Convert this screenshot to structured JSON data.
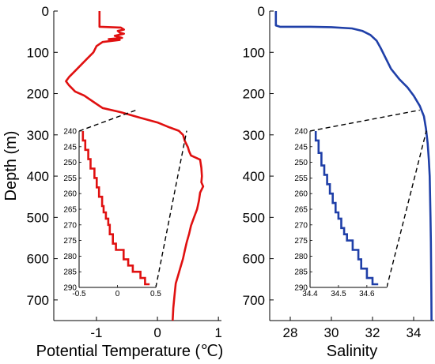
{
  "chart_data": [
    {
      "type": "line",
      "xlabel": "Potential Temperature (℃)",
      "ylabel": "Depth (m)",
      "xlim": [
        -1.7,
        1.05
      ],
      "ylim": [
        750,
        0
      ],
      "xticks": [
        -1,
        0,
        1
      ],
      "yticks": [
        0,
        100,
        200,
        300,
        400,
        500,
        600,
        700
      ],
      "grid": false,
      "color": "#e01010",
      "series": [
        {
          "x": [
            -0.95,
            -0.95,
            -0.6,
            -0.55,
            -0.65,
            -0.62,
            -0.55,
            -0.7,
            -0.58,
            -0.8,
            -0.62,
            -0.9,
            -1.0,
            -1.05,
            -1.15,
            -1.25,
            -1.35,
            -1.45,
            -1.5,
            -1.45,
            -1.35,
            -1.2,
            -1.05,
            -0.9,
            -0.6,
            -0.3,
            0.0,
            0.2,
            0.35,
            0.42,
            0.45,
            0.5,
            0.52,
            0.55,
            0.7,
            0.72,
            0.73,
            0.72,
            0.75,
            0.7,
            0.68,
            0.65,
            0.6,
            0.55,
            0.52,
            0.48,
            0.45,
            0.42,
            0.38,
            0.34,
            0.3,
            0.28,
            0.26,
            0.25
          ],
          "y": [
            0,
            38,
            40,
            45,
            48,
            52,
            55,
            60,
            65,
            68,
            70,
            75,
            85,
            100,
            115,
            130,
            145,
            160,
            170,
            180,
            195,
            205,
            220,
            235,
            245,
            258,
            270,
            282,
            290,
            300,
            315,
            330,
            340,
            350,
            360,
            380,
            400,
            415,
            425,
            440,
            460,
            480,
            500,
            520,
            540,
            560,
            580,
            600,
            620,
            640,
            660,
            690,
            720,
            750
          ]
        }
      ],
      "inset": {
        "xlim": [
          -0.5,
          0.5
        ],
        "ylim": [
          290,
          240
        ],
        "xticks": [
          -0.5,
          0,
          0.5
        ],
        "xtick_labels": [
          "-0.5",
          "0",
          "0.5"
        ],
        "yticks": [
          240,
          245,
          250,
          255,
          260,
          265,
          270,
          275,
          280,
          285,
          290
        ],
        "x": [
          -0.45,
          -0.45,
          -0.42,
          -0.42,
          -0.38,
          -0.38,
          -0.35,
          -0.35,
          -0.3,
          -0.3,
          -0.27,
          -0.27,
          -0.24,
          -0.24,
          -0.2,
          -0.2,
          -0.18,
          -0.18,
          -0.15,
          -0.15,
          -0.12,
          -0.12,
          -0.1,
          -0.1,
          -0.06,
          -0.06,
          -0.02,
          -0.02,
          0.08,
          0.08,
          0.14,
          0.14,
          0.2,
          0.2,
          0.3,
          0.3,
          0.36,
          0.36,
          0.42
        ],
        "y": [
          240,
          243,
          243,
          246,
          246,
          249,
          249,
          252,
          252,
          255,
          255,
          258,
          258,
          261,
          261,
          264,
          264,
          266,
          266,
          268,
          268,
          270,
          270,
          273,
          273,
          276,
          276,
          278,
          278,
          281,
          281,
          283,
          283,
          285,
          285,
          287,
          287,
          289,
          289
        ]
      },
      "zoom_range_m": [
        240,
        290
      ]
    },
    {
      "type": "line",
      "xlabel": "Salinity",
      "ylabel": "",
      "xlim": [
        27,
        35
      ],
      "ylim": [
        750,
        0
      ],
      "xticks": [
        28,
        30,
        32,
        34
      ],
      "yticks": [
        0,
        100,
        200,
        300,
        400,
        500,
        600,
        700
      ],
      "grid": false,
      "color": "#1f3fa8",
      "series": [
        {
          "x": [
            27.3,
            27.3,
            27.5,
            28.0,
            29.0,
            30.0,
            31.0,
            31.5,
            31.9,
            32.2,
            32.4,
            32.6,
            32.9,
            33.3,
            33.7,
            34.0,
            34.3,
            34.5,
            34.6,
            34.68,
            34.74,
            34.78,
            34.8,
            34.82,
            34.84,
            34.85,
            34.86,
            34.87
          ],
          "y": [
            0,
            35,
            38,
            38,
            38,
            39,
            42,
            48,
            58,
            72,
            90,
            110,
            140,
            165,
            185,
            205,
            230,
            255,
            285,
            320,
            360,
            400,
            450,
            500,
            560,
            620,
            690,
            750
          ]
        }
      ],
      "inset": {
        "xlim": [
          34.4,
          34.67
        ],
        "ylim": [
          290,
          240
        ],
        "xticks": [
          34.4,
          34.5,
          34.6
        ],
        "xtick_labels": [
          "34.4",
          "34.5",
          "34.6"
        ],
        "yticks": [
          240,
          245,
          250,
          255,
          260,
          265,
          270,
          275,
          280,
          285,
          290
        ],
        "x": [
          34.42,
          34.42,
          34.43,
          34.43,
          34.44,
          34.44,
          34.45,
          34.45,
          34.46,
          34.46,
          34.47,
          34.47,
          34.48,
          34.48,
          34.49,
          34.49,
          34.5,
          34.5,
          34.51,
          34.51,
          34.52,
          34.52,
          34.53,
          34.53,
          34.55,
          34.55,
          34.57,
          34.57,
          34.58,
          34.58,
          34.6,
          34.6,
          34.62,
          34.62,
          34.64
        ],
        "y": [
          240,
          243,
          243,
          247,
          247,
          251,
          251,
          254,
          254,
          257,
          257,
          260,
          260,
          263,
          263,
          266,
          266,
          268,
          268,
          271,
          271,
          273,
          273,
          275,
          275,
          278,
          278,
          281,
          281,
          284,
          284,
          287,
          287,
          289,
          289
        ]
      },
      "zoom_range_m": [
        240,
        290
      ]
    }
  ]
}
